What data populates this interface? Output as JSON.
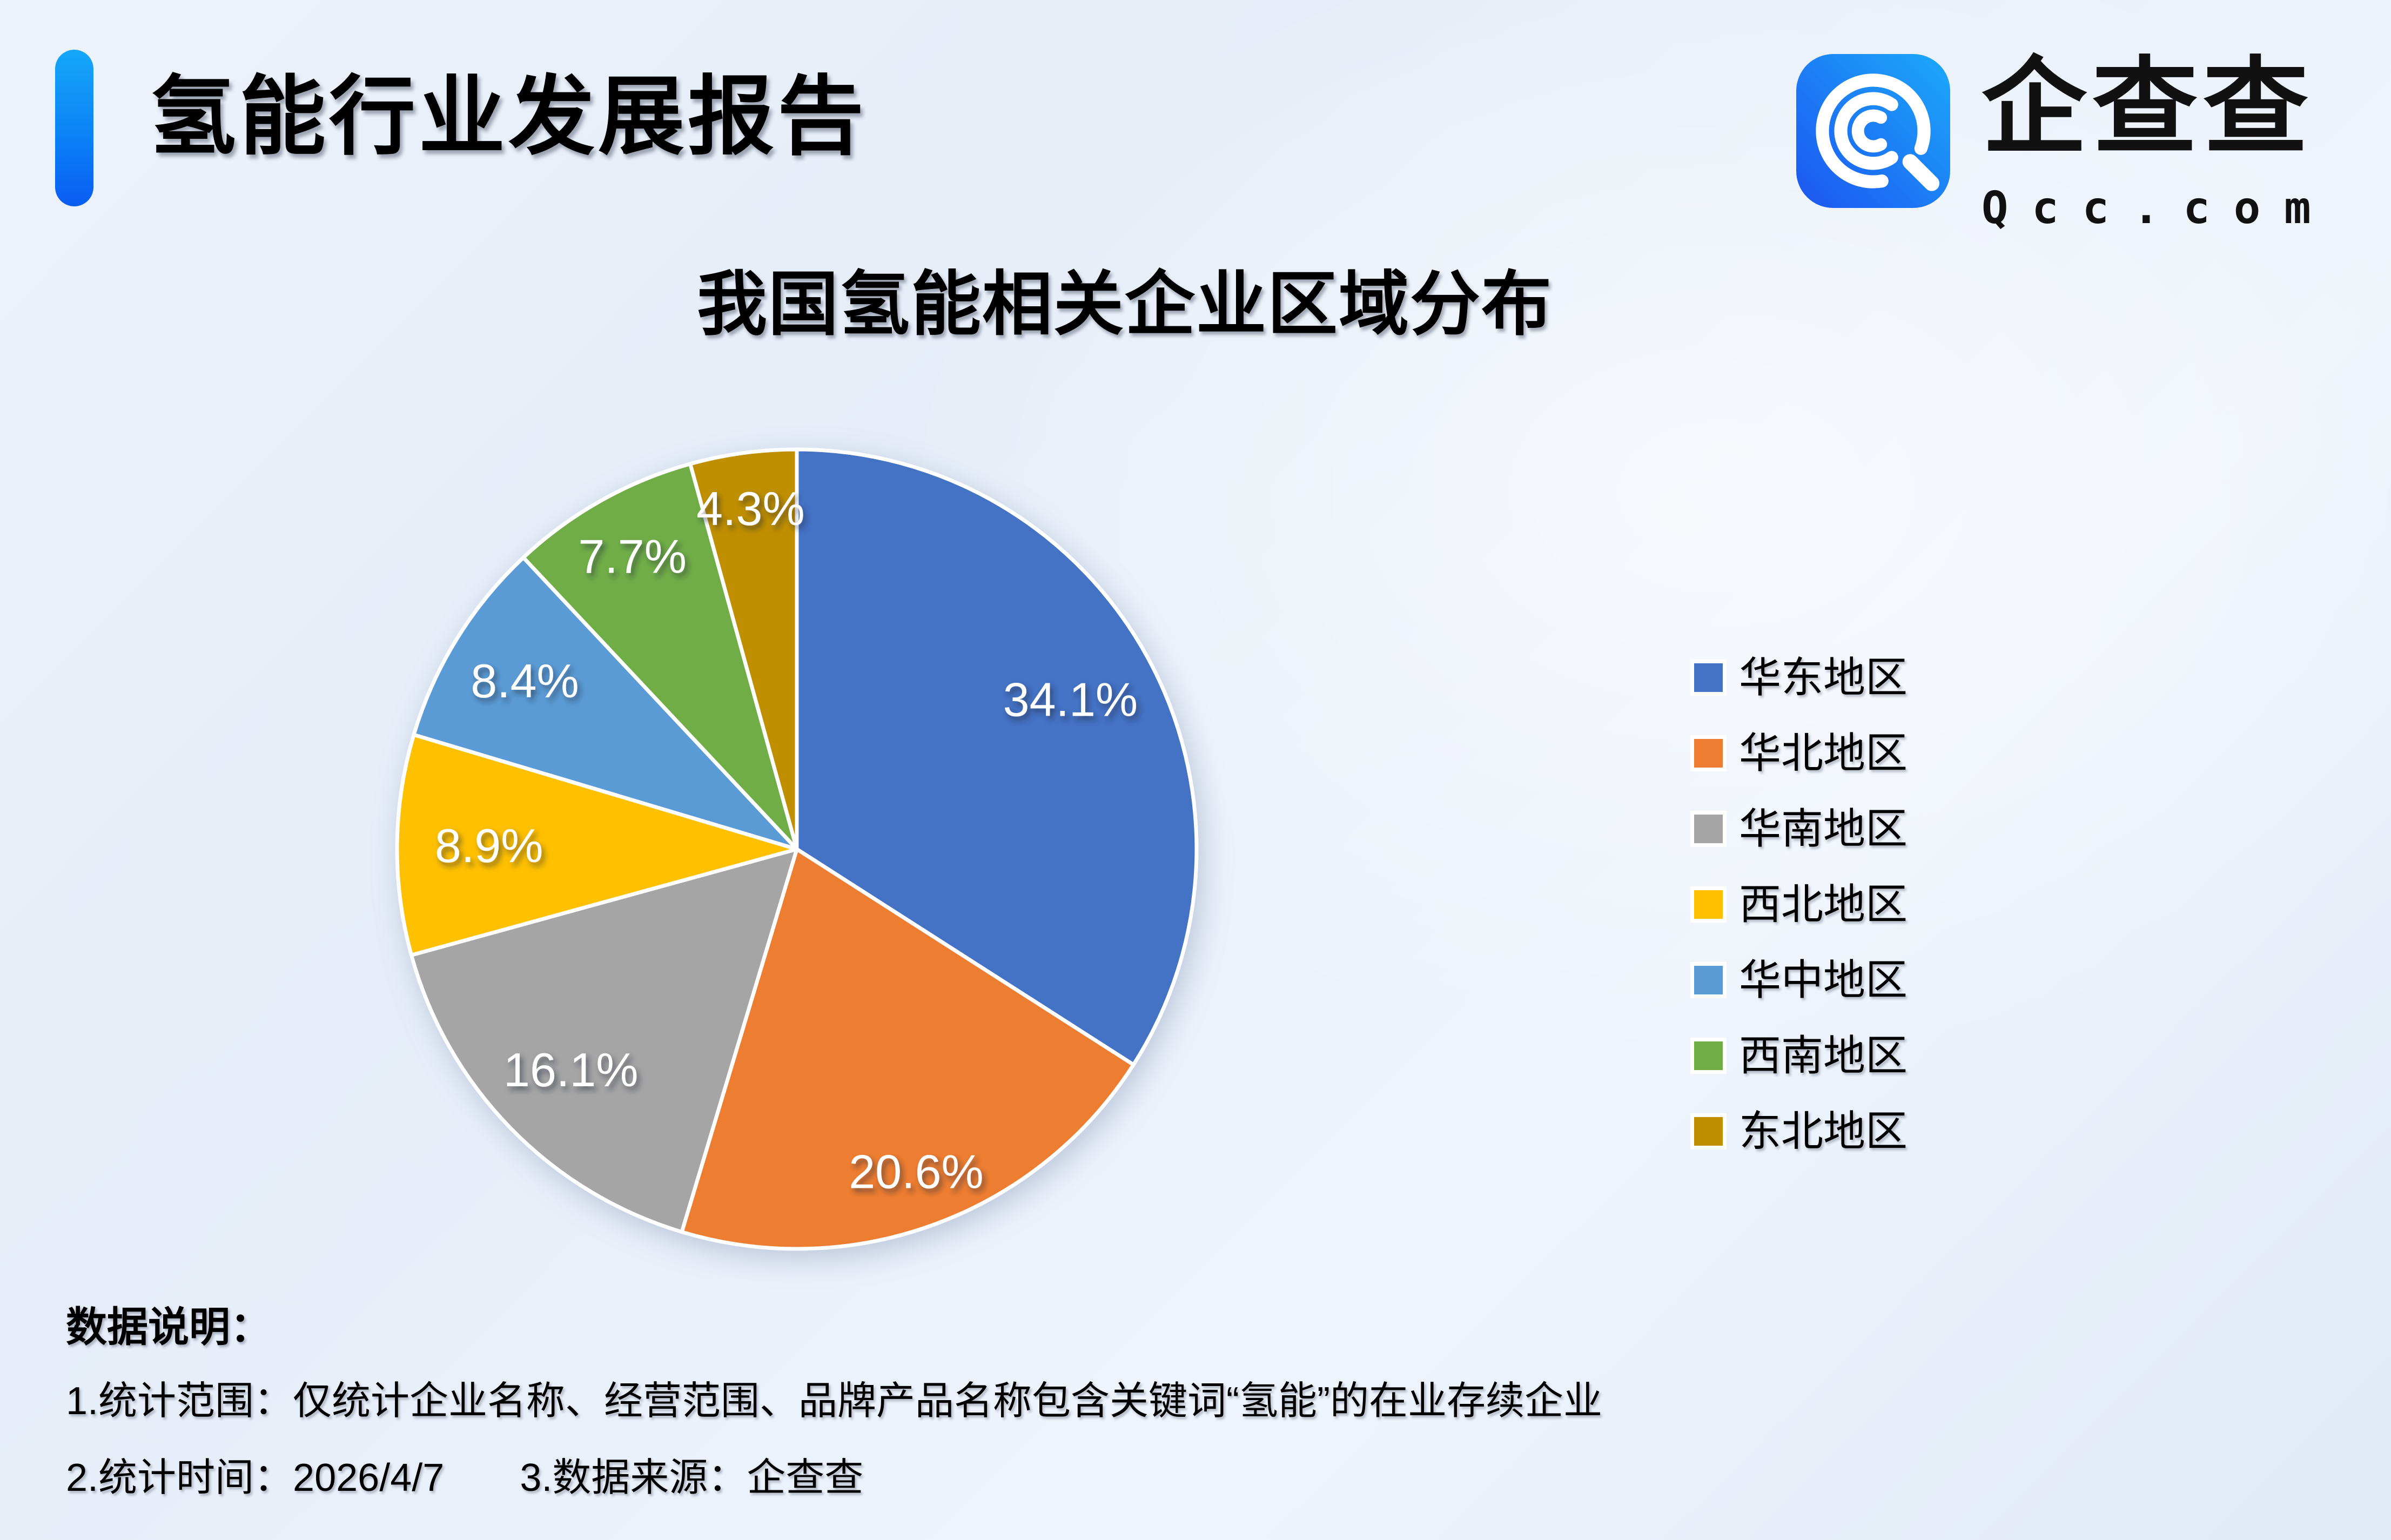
{
  "header": {
    "title": "氢能行业发展报告",
    "accent_gradient_top": "#16A7F9",
    "accent_gradient_bottom": "#0A5CF3"
  },
  "logo": {
    "brand_cn": "企查查",
    "brand_domain": "Qcc.com",
    "icon_gradient_start": "#1D55F0",
    "icon_gradient_end": "#1BAAFB"
  },
  "chart_data": {
    "type": "pie",
    "title": "我国氢能相关企业区域分布",
    "unit": "%",
    "series": [
      {
        "name": "华东地区",
        "value": 34.1,
        "color": "#4472C4"
      },
      {
        "name": "华北地区",
        "value": 20.6,
        "color": "#ED7D31"
      },
      {
        "name": "华南地区",
        "value": 16.1,
        "color": "#A5A5A5"
      },
      {
        "name": "西北地区",
        "value": 8.9,
        "color": "#FFC000"
      },
      {
        "name": "华中地区",
        "value": 8.4,
        "color": "#5B9BD5"
      },
      {
        "name": "西南地区",
        "value": 7.7,
        "color": "#70AD47"
      },
      {
        "name": "东北地区",
        "value": 4.3,
        "color": "#BF8F00"
      }
    ],
    "start_angle_deg": 0,
    "clockwise": true,
    "label_format": "{value}%",
    "label_color": "#FFFFFF",
    "label_radius_fractions": [
      0.78,
      0.86,
      0.79,
      0.77,
      0.8,
      0.84,
      0.86
    ],
    "slice_stroke_color": "#FFFFFF",
    "slice_stroke_width": 7,
    "legend_position": "right",
    "grid": false
  },
  "footnotes": {
    "heading": "数据说明：",
    "notes": [
      "1.统计范围：仅统计企业名称、经营范围、品牌产品名称包含关键词“氢能”的在业存续企业",
      "2.统计时间：2026/4/7",
      "3.数据来源：企查查"
    ]
  }
}
